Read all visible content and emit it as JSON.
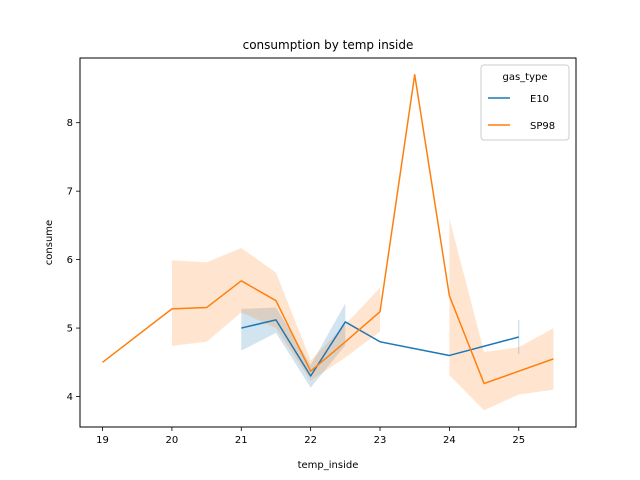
{
  "chart_data": {
    "type": "line",
    "title": "consumption by temp inside",
    "xlabel": "temp_inside",
    "ylabel": "consume",
    "xlim": [
      18.675,
      25.825
    ],
    "ylim": [
      3.555,
      8.945
    ],
    "xticks": [
      19,
      20,
      21,
      22,
      23,
      24,
      25
    ],
    "yticks": [
      4,
      5,
      6,
      7,
      8
    ],
    "legend": {
      "title": "gas_type",
      "position": "top-right"
    },
    "series": [
      {
        "name": "E10",
        "color": "#1f77b4",
        "points": [
          {
            "x": 21.0,
            "y": 5.0,
            "lo": 4.67,
            "hi": 5.28
          },
          {
            "x": 21.5,
            "y": 5.12,
            "lo": 4.93,
            "hi": 5.3
          },
          {
            "x": 22.0,
            "y": 4.3,
            "lo": 4.13,
            "hi": 4.46
          },
          {
            "x": 22.5,
            "y": 5.09,
            "lo": 4.75,
            "hi": 5.36
          },
          {
            "x": 23.0,
            "y": 4.8
          },
          {
            "x": 24.0,
            "y": 4.6
          },
          {
            "x": 25.0,
            "y": 4.87,
            "lo": 4.62,
            "hi": 5.12
          }
        ]
      },
      {
        "name": "SP98",
        "color": "#ff7f0e",
        "points": [
          {
            "x": 19.0,
            "y": 4.5
          },
          {
            "x": 20.0,
            "y": 5.28,
            "lo": 4.74,
            "hi": 5.99
          },
          {
            "x": 20.5,
            "y": 5.3,
            "lo": 4.8,
            "hi": 5.96
          },
          {
            "x": 21.0,
            "y": 5.69,
            "lo": 5.23,
            "hi": 6.17
          },
          {
            "x": 21.5,
            "y": 5.4,
            "lo": 5.0,
            "hi": 5.81
          },
          {
            "x": 22.0,
            "y": 4.37,
            "lo": 4.23,
            "hi": 4.53
          },
          {
            "x": 22.5,
            "y": 4.8,
            "lo": 4.57,
            "hi": 5.05
          },
          {
            "x": 23.0,
            "y": 5.24,
            "lo": 4.95,
            "hi": 5.59
          },
          {
            "x": 23.5,
            "y": 8.7
          },
          {
            "x": 24.0,
            "y": 5.47,
            "lo": 4.31,
            "hi": 6.6
          },
          {
            "x": 24.5,
            "y": 4.19,
            "lo": 3.8,
            "hi": 4.65
          },
          {
            "x": 25.0,
            "y": 4.37,
            "lo": 4.03,
            "hi": 4.72
          },
          {
            "x": 25.5,
            "y": 4.55,
            "lo": 4.1,
            "hi": 5.0
          }
        ]
      }
    ]
  }
}
